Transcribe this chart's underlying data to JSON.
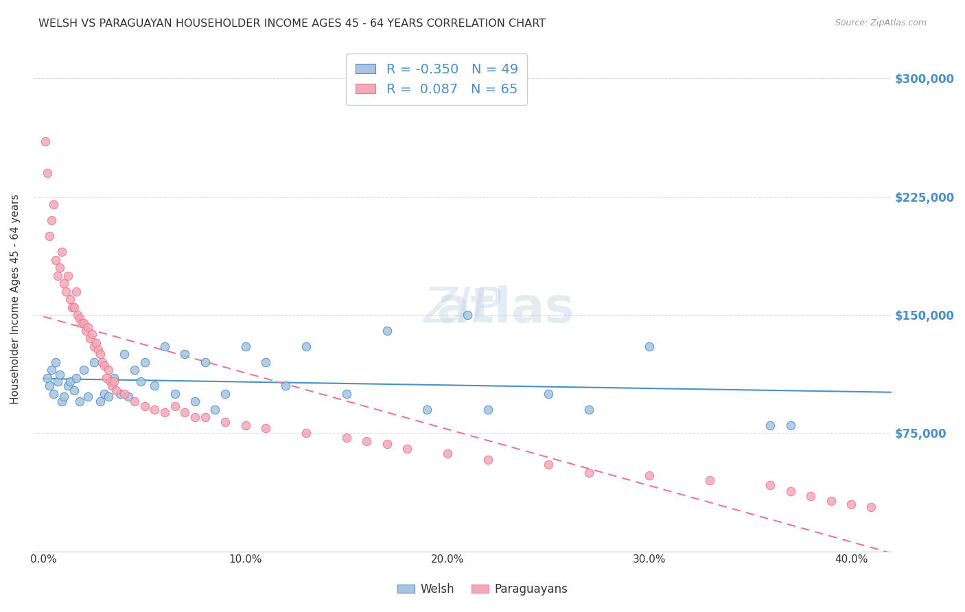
{
  "title": "WELSH VS PARAGUAYAN HOUSEHOLDER INCOME AGES 45 - 64 YEARS CORRELATION CHART",
  "source": "Source: ZipAtlas.com",
  "ylabel": "Householder Income Ages 45 - 64 years",
  "xlabel_ticks": [
    "0.0%",
    "10.0%",
    "20.0%",
    "30.0%",
    "40.0%"
  ],
  "xlabel_vals": [
    0.0,
    0.1,
    0.2,
    0.3,
    0.4
  ],
  "ytick_labels": [
    "$75,000",
    "$150,000",
    "$225,000",
    "$300,000"
  ],
  "ytick_vals": [
    75000,
    150000,
    225000,
    300000
  ],
  "ylim": [
    0,
    320000
  ],
  "xlim": [
    -0.005,
    0.42
  ],
  "welsh_R": -0.35,
  "welsh_N": 49,
  "paraguayan_R": 0.087,
  "paraguayan_N": 65,
  "welsh_color": "#a8c4e0",
  "paraguayan_color": "#f4a8b8",
  "welsh_line_color": "#4a90c4",
  "paraguayan_line_color": "#e87890",
  "background_color": "#ffffff",
  "watermark": "ZIPatlas",
  "welsh_scatter_x": [
    0.002,
    0.003,
    0.004,
    0.005,
    0.006,
    0.007,
    0.008,
    0.009,
    0.01,
    0.012,
    0.013,
    0.015,
    0.016,
    0.018,
    0.02,
    0.022,
    0.025,
    0.028,
    0.03,
    0.032,
    0.035,
    0.038,
    0.04,
    0.042,
    0.045,
    0.048,
    0.05,
    0.055,
    0.06,
    0.065,
    0.07,
    0.075,
    0.08,
    0.085,
    0.09,
    0.1,
    0.11,
    0.12,
    0.13,
    0.15,
    0.17,
    0.19,
    0.21,
    0.22,
    0.25,
    0.27,
    0.3,
    0.36,
    0.37
  ],
  "welsh_scatter_y": [
    110000,
    105000,
    115000,
    100000,
    120000,
    108000,
    112000,
    95000,
    98000,
    105000,
    108000,
    102000,
    110000,
    95000,
    115000,
    98000,
    120000,
    95000,
    100000,
    98000,
    110000,
    100000,
    125000,
    98000,
    115000,
    108000,
    120000,
    105000,
    130000,
    100000,
    125000,
    95000,
    120000,
    90000,
    100000,
    130000,
    120000,
    105000,
    130000,
    100000,
    140000,
    90000,
    150000,
    90000,
    100000,
    90000,
    130000,
    80000,
    80000
  ],
  "paraguayan_scatter_x": [
    0.001,
    0.002,
    0.003,
    0.004,
    0.005,
    0.006,
    0.007,
    0.008,
    0.009,
    0.01,
    0.011,
    0.012,
    0.013,
    0.014,
    0.015,
    0.016,
    0.017,
    0.018,
    0.019,
    0.02,
    0.021,
    0.022,
    0.023,
    0.024,
    0.025,
    0.026,
    0.027,
    0.028,
    0.029,
    0.03,
    0.031,
    0.032,
    0.033,
    0.034,
    0.035,
    0.036,
    0.04,
    0.045,
    0.05,
    0.055,
    0.06,
    0.065,
    0.07,
    0.075,
    0.08,
    0.09,
    0.1,
    0.11,
    0.13,
    0.15,
    0.16,
    0.17,
    0.18,
    0.2,
    0.22,
    0.25,
    0.27,
    0.3,
    0.33,
    0.36,
    0.37,
    0.38,
    0.39,
    0.4,
    0.41
  ],
  "paraguayan_scatter_y": [
    260000,
    240000,
    200000,
    210000,
    220000,
    185000,
    175000,
    180000,
    190000,
    170000,
    165000,
    175000,
    160000,
    155000,
    155000,
    165000,
    150000,
    148000,
    145000,
    145000,
    140000,
    142000,
    135000,
    138000,
    130000,
    132000,
    128000,
    125000,
    120000,
    118000,
    110000,
    115000,
    108000,
    105000,
    108000,
    102000,
    100000,
    95000,
    92000,
    90000,
    88000,
    92000,
    88000,
    85000,
    85000,
    82000,
    80000,
    78000,
    75000,
    72000,
    70000,
    68000,
    65000,
    62000,
    58000,
    55000,
    50000,
    48000,
    45000,
    42000,
    38000,
    35000,
    32000,
    30000,
    28000
  ]
}
